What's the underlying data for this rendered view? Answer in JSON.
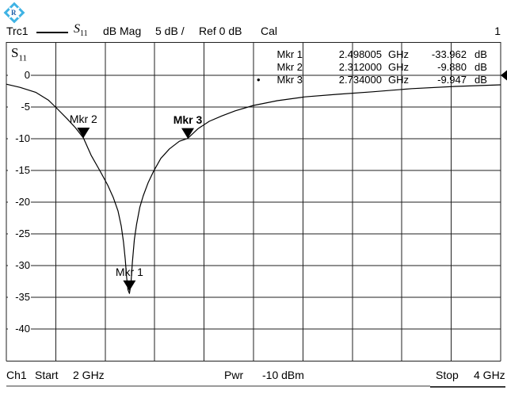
{
  "header": {
    "trace_label": "Trc1",
    "measurement_base": "S",
    "measurement_sub": "11",
    "format": "dB Mag",
    "scale": "5 dB /",
    "reference": "Ref 0 dB",
    "cal": "Cal",
    "diagram_number": "1"
  },
  "plot": {
    "y_axis_labels": [
      "0",
      "-5",
      "-10",
      "-15",
      "-20",
      "-25",
      "-30",
      "-35",
      "-40"
    ]
  },
  "marker_table": {
    "rows": [
      {
        "bullet": "",
        "name": "Mkr 1",
        "freq": "2.498005",
        "freq_unit": "GHz",
        "level": "-33.962",
        "level_unit": "dB"
      },
      {
        "bullet": "",
        "name": "Mkr 2",
        "freq": "2.312000",
        "freq_unit": "GHz",
        "level": "-9.880",
        "level_unit": "dB"
      },
      {
        "bullet": "•",
        "name": "Mkr 3",
        "freq": "2.734000",
        "freq_unit": "GHz",
        "level": "-9.947",
        "level_unit": "dB"
      }
    ]
  },
  "chart_data": {
    "type": "line",
    "title": "Trc1 S11 dB Mag, 5 dB/div, Ref 0 dB",
    "x_unit": "GHz",
    "y_unit": "dB",
    "x_range": [
      2,
      4
    ],
    "x_divisions": 10,
    "y_ref_db": 0,
    "y_db_per_div": 5,
    "y_ticks": [
      0,
      -5,
      -10,
      -15,
      -20,
      -25,
      -30,
      -35,
      -40
    ],
    "ylim": [
      -45,
      5
    ],
    "grid": true,
    "legend_position": "none",
    "series": [
      {
        "name": "Trc1 S11",
        "x": [
          2.0,
          2.055,
          2.12,
          2.17,
          2.199,
          2.247,
          2.28,
          2.312,
          2.343,
          2.378,
          2.41,
          2.433,
          2.452,
          2.465,
          2.474,
          2.481,
          2.487,
          2.492,
          2.498,
          2.504,
          2.51,
          2.518,
          2.527,
          2.54,
          2.554,
          2.574,
          2.596,
          2.625,
          2.66,
          2.7,
          2.734,
          2.776,
          2.821,
          2.872,
          2.926,
          3.0,
          3.096,
          3.208,
          3.337,
          3.481,
          3.641,
          3.817,
          4.0
        ],
        "y": [
          -1.4,
          -1.9,
          -2.7,
          -3.9,
          -5.0,
          -6.9,
          -8.3,
          -9.88,
          -12.6,
          -15.0,
          -17.3,
          -19.3,
          -21.4,
          -23.8,
          -26.3,
          -29.0,
          -31.9,
          -33.8,
          -34.4,
          -33.0,
          -29.5,
          -25.9,
          -23.5,
          -20.8,
          -19.0,
          -16.9,
          -15.1,
          -13.1,
          -11.6,
          -10.4,
          -9.947,
          -8.4,
          -7.25,
          -6.4,
          -5.6,
          -4.75,
          -4.0,
          -3.4,
          -3.0,
          -2.6,
          -2.1,
          -1.75,
          -1.5
        ]
      }
    ],
    "markers": [
      {
        "label": "Mkr 1",
        "x_ghz": 2.498005,
        "y_db": -33.962,
        "active": false
      },
      {
        "label": "Mkr 2",
        "x_ghz": 2.312,
        "y_db": -9.88,
        "active": false
      },
      {
        "label": "Mkr 3",
        "x_ghz": 2.734,
        "y_db": -9.947,
        "active": true
      }
    ],
    "ref_indicator_db": 0
  },
  "footer": {
    "channel": "Ch1",
    "start_label": "Start",
    "start_value": "2 GHz",
    "pwr_label": "Pwr",
    "pwr_value": "-10 dBm",
    "stop_label": "Stop",
    "stop_value": "4 GHz"
  },
  "colors": {
    "logo_blue": "#3fb3e4",
    "logo_dark_blue": "#1a5ca8",
    "grid": "#1f1f1f",
    "trace": "#000000",
    "background": "#ffffff"
  }
}
